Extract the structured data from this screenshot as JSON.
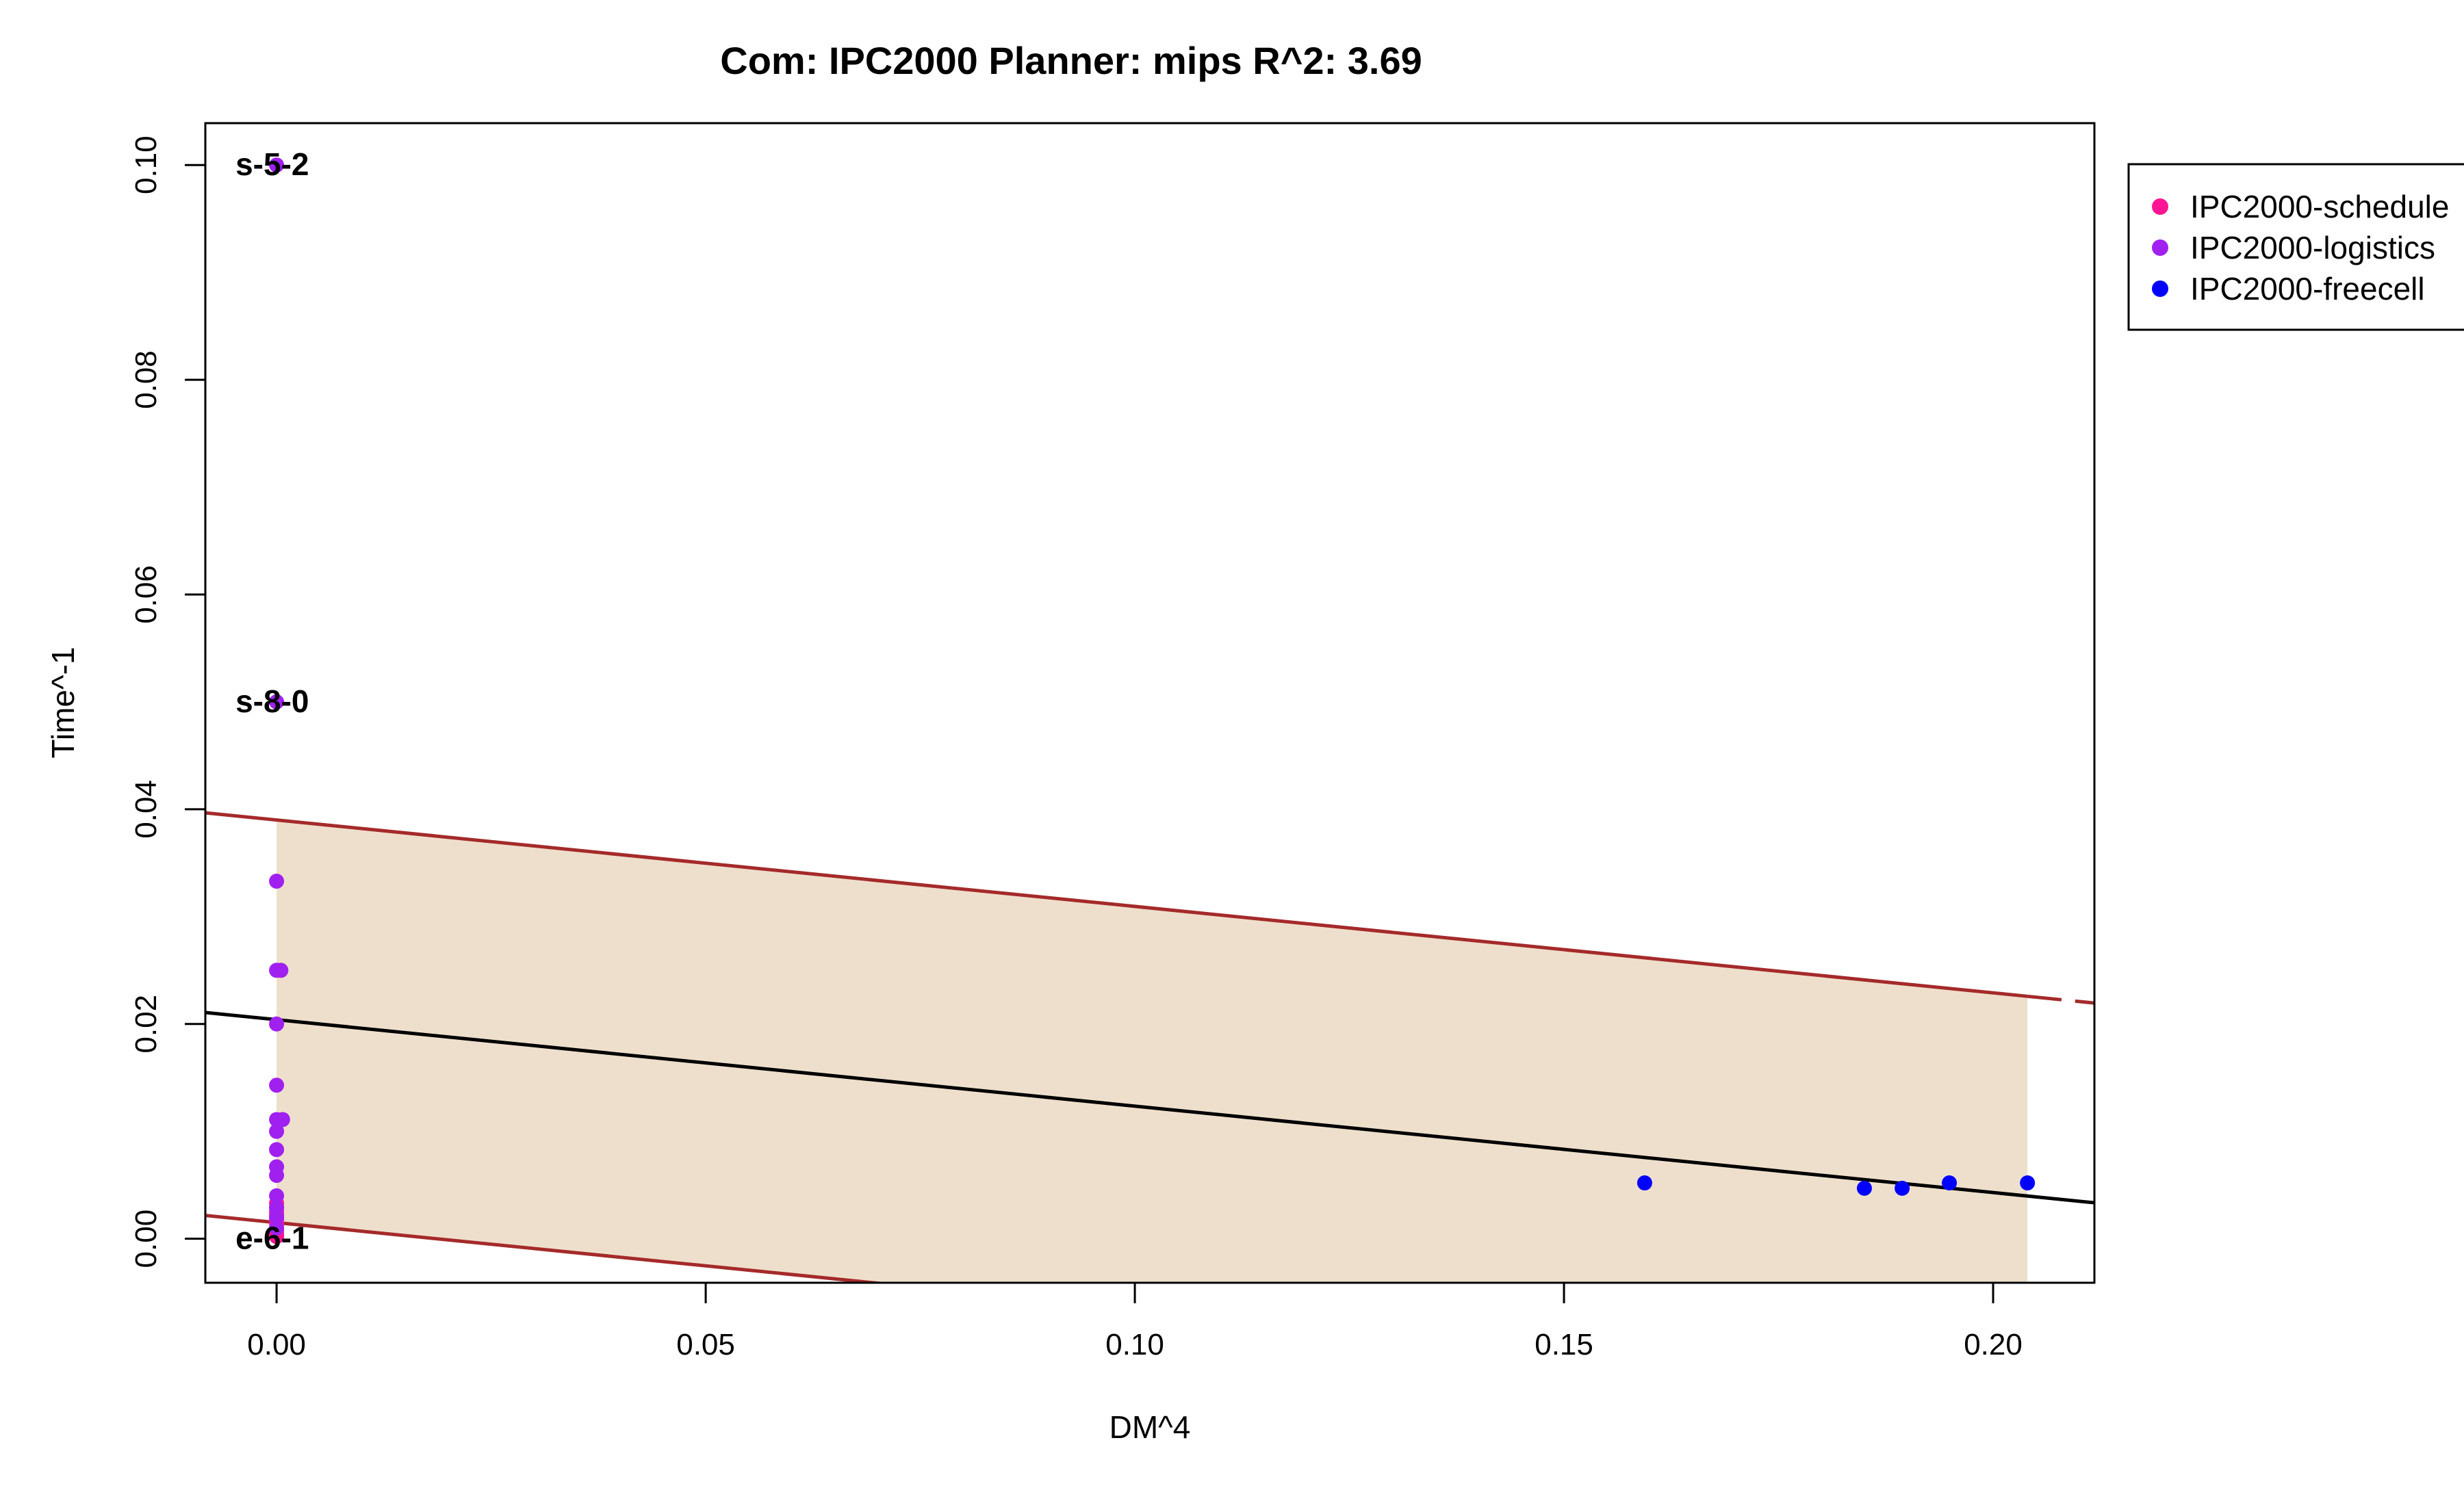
{
  "chart_data": {
    "type": "scatter",
    "title": "Com: IPC2000 Planner: mips R^2: 3.69",
    "xlabel": "DM^4",
    "ylabel": "Time^-1",
    "xlim": [
      -0.0083,
      0.2118
    ],
    "ylim": [
      -0.0041,
      0.1039
    ],
    "x_ticks": [
      0.0,
      0.05,
      0.1,
      0.15,
      0.2
    ],
    "x_tick_labels": [
      "0.00",
      "0.05",
      "0.10",
      "0.15",
      "0.20"
    ],
    "y_ticks": [
      0.0,
      0.02,
      0.04,
      0.06,
      0.08,
      0.1
    ],
    "y_tick_labels": [
      "0.00",
      "0.02",
      "0.04",
      "0.06",
      "0.08",
      "0.10"
    ],
    "grid": false,
    "legend_position": "top-right",
    "series": [
      {
        "name": "IPC2000-schedule",
        "color": "#ff1493",
        "points": [
          [
            0.0,
            0.0033
          ],
          [
            0.0,
            0.0029
          ],
          [
            0.0,
            0.0025
          ],
          [
            0.0,
            0.0022
          ],
          [
            0.0,
            0.0018
          ],
          [
            0.0,
            0.0014
          ],
          [
            0.0,
            0.001
          ],
          [
            0.0,
            0.0007
          ],
          [
            0.0,
            0.0004
          ],
          [
            0.0,
            0.0002
          ]
        ]
      },
      {
        "name": "IPC2000-logistics",
        "color": "#a020f0",
        "points": [
          [
            0.0,
            0.1
          ],
          [
            0.0,
            0.05
          ],
          [
            0.0,
            0.0333
          ],
          [
            0.0,
            0.025
          ],
          [
            0.0005,
            0.025
          ],
          [
            0.0,
            0.02
          ],
          [
            0.0,
            0.0143
          ],
          [
            0.0,
            0.0111
          ],
          [
            0.0007,
            0.0111
          ],
          [
            0.0,
            0.01
          ],
          [
            0.0,
            0.0083
          ],
          [
            0.0,
            0.0067
          ],
          [
            0.0,
            0.0059
          ],
          [
            0.0,
            0.004
          ],
          [
            0.0,
            0.0029
          ],
          [
            0.0,
            0.002
          ],
          [
            0.0,
            0.001
          ]
        ]
      },
      {
        "name": "IPC2000-freecell",
        "color": "#0000ff",
        "points": [
          [
            0.1594,
            0.0052
          ],
          [
            0.185,
            0.0047
          ],
          [
            0.1894,
            0.0047
          ],
          [
            0.1949,
            0.0052
          ],
          [
            0.204,
            0.0052
          ]
        ]
      }
    ],
    "regression": {
      "color": "#000000",
      "intercept": 0.0204,
      "slope": -0.0805
    },
    "prediction_band": {
      "line_color": "#a52a2a",
      "fill_color": "#eedfcc",
      "x_range": [
        0.0,
        0.204
      ],
      "upper_intercept": 0.039,
      "upper_slope": -0.0805,
      "lower_intercept": 0.0015,
      "lower_slope": -0.0805
    },
    "annotations": [
      {
        "text": "s-5-2",
        "x": 0.0,
        "y": 0.1
      },
      {
        "text": "s-8-0",
        "x": 0.0,
        "y": 0.05
      },
      {
        "text": "e-6-1",
        "x": 0.0,
        "y": 0.0
      }
    ]
  }
}
